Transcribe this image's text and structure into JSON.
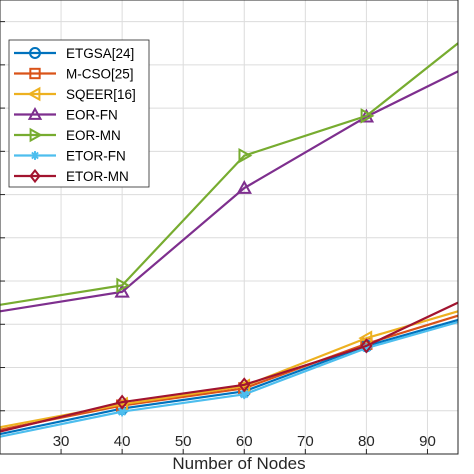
{
  "chart_data": {
    "type": "line",
    "xlabel": "Number of Nodes",
    "xlim": [
      20,
      95
    ],
    "ylim": [
      0,
      10.5
    ],
    "xticks": [
      30,
      40,
      50,
      60,
      70,
      80,
      90
    ],
    "yticks": [
      1,
      2,
      3,
      4,
      5,
      6,
      7,
      8,
      9,
      10
    ],
    "grid": true,
    "legend_position": "top-left",
    "series": [
      {
        "name": "ETGSA[24]",
        "color": "#0072BD",
        "marker": "circle",
        "x": [
          20,
          40,
          60,
          80,
          95
        ],
        "y": [
          0.46,
          1.05,
          1.45,
          2.5,
          3.1
        ]
      },
      {
        "name": "M-CSO[25]",
        "color": "#D95319",
        "marker": "square",
        "x": [
          20,
          40,
          60,
          80,
          95
        ],
        "y": [
          0.56,
          1.12,
          1.52,
          2.55,
          3.2
        ]
      },
      {
        "name": "SQEER[16]",
        "color": "#EDB120",
        "marker": "triangle-left",
        "x": [
          20,
          40,
          60,
          80,
          95
        ],
        "y": [
          0.62,
          1.15,
          1.57,
          2.68,
          3.3
        ]
      },
      {
        "name": "EOR-FN",
        "color": "#7E2F8E",
        "marker": "triangle-up",
        "x": [
          20,
          40,
          60,
          80,
          95
        ],
        "y": [
          3.3,
          3.75,
          6.15,
          7.8,
          8.85
        ]
      },
      {
        "name": "EOR-MN",
        "color": "#77AC30",
        "marker": "triangle-right",
        "x": [
          20,
          40,
          60,
          80,
          95
        ],
        "y": [
          3.45,
          3.9,
          6.9,
          7.82,
          9.5
        ]
      },
      {
        "name": "ETOR-FN",
        "color": "#4DBEEE",
        "marker": "asterisk",
        "x": [
          20,
          40,
          60,
          80,
          95
        ],
        "y": [
          0.4,
          0.98,
          1.38,
          2.45,
          3.05
        ]
      },
      {
        "name": "ETOR-MN",
        "color": "#A2142F",
        "marker": "diamond",
        "x": [
          20,
          40,
          60,
          80,
          95
        ],
        "y": [
          0.52,
          1.2,
          1.6,
          2.5,
          3.5
        ]
      }
    ]
  }
}
